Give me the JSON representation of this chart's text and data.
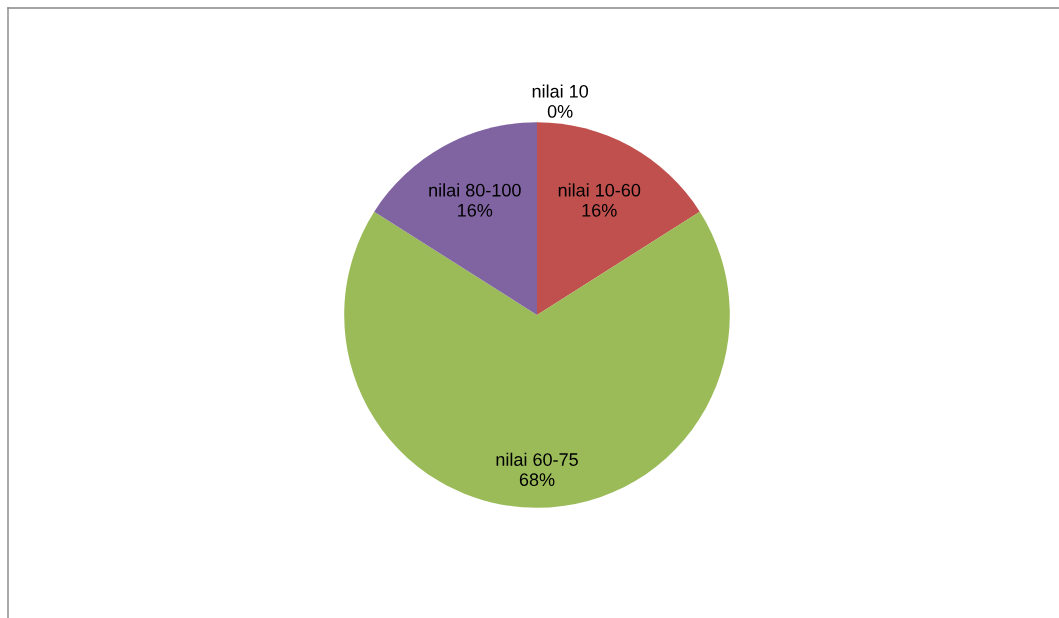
{
  "chart_data": {
    "type": "pie",
    "categories": [
      "nilai 10",
      "nilai 10-60",
      "nilai 60-75",
      "nilai 80-100"
    ],
    "values": [
      0,
      16,
      68,
      16
    ],
    "value_labels": [
      "0%",
      "16%",
      "68%",
      "16%"
    ],
    "colors": [
      "#4f81bd",
      "#c0504d",
      "#9bbb59",
      "#8064a2"
    ],
    "legend": false
  }
}
